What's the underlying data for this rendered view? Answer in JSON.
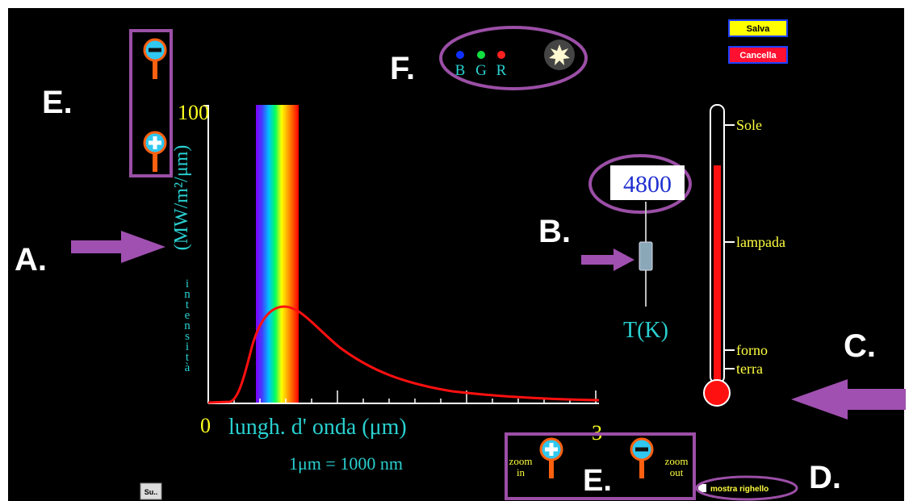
{
  "buttons": {
    "save": "Salva",
    "cancel": "Cancella",
    "small": "Su.."
  },
  "annotations": {
    "a": "A.",
    "b": "B.",
    "c": "C.",
    "d": "D.",
    "e_top": "E.",
    "e_bottom": "E.",
    "f": "F."
  },
  "colors": {
    "b": "B",
    "g": "G",
    "r": "R"
  },
  "graph": {
    "ymax": "100",
    "yunit": "(MW/m²/μm)",
    "ylabel": "intensità",
    "xmin": "0",
    "xmax": "3",
    "xlabel": "lungh. d' onda (μm)",
    "note": "1μm  =  1000 nm"
  },
  "temperature": {
    "value": "4800",
    "label": "T(K)"
  },
  "thermometer": {
    "marks": [
      "Sole",
      "lampada",
      "forno",
      "terra"
    ]
  },
  "zoom": {
    "in": "zoom in",
    "out": "zoom out"
  },
  "ruler": "mostra righello"
}
